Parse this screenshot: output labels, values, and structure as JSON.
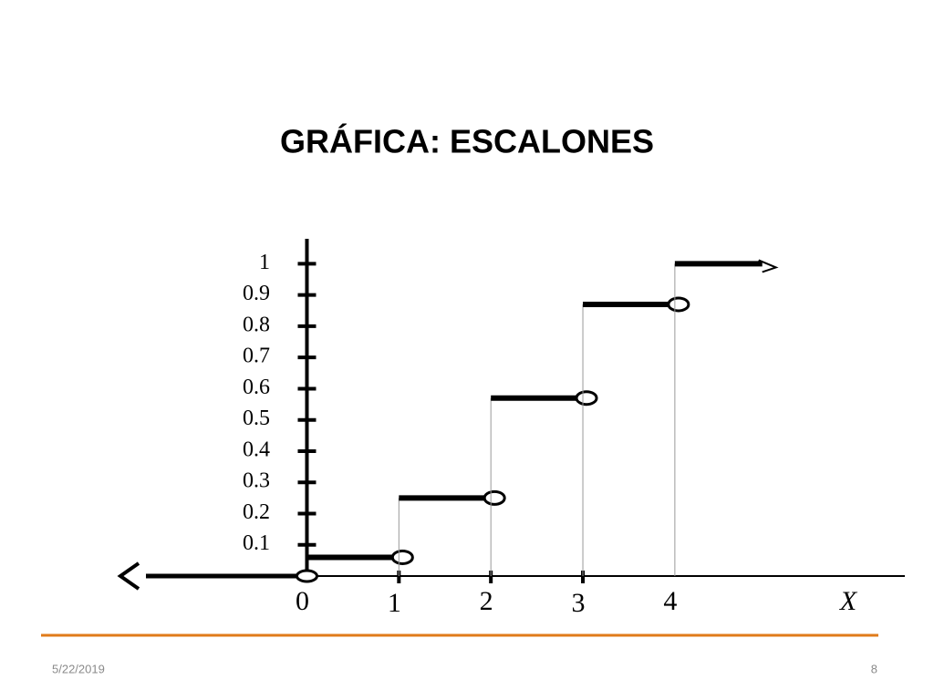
{
  "chart_data": {
    "type": "step",
    "title": "GRÁFICA:  ESCALONES",
    "x": [
      0,
      1,
      2,
      3,
      4
    ],
    "values": [
      0.06,
      0.25,
      0.57,
      0.87,
      1
    ],
    "color": "#000000",
    "xlim": [
      -1.75,
      6.5
    ],
    "xticks": [
      0,
      1,
      2,
      3,
      4
    ],
    "xlabel": "X",
    "ylim": [
      0,
      1.08
    ],
    "yticks": [
      0.1,
      0.2,
      0.3,
      0.4,
      0.5,
      0.6,
      0.7,
      0.8,
      0.9,
      1
    ]
  },
  "footer": {
    "date": "5/22/2019",
    "page": "8"
  }
}
